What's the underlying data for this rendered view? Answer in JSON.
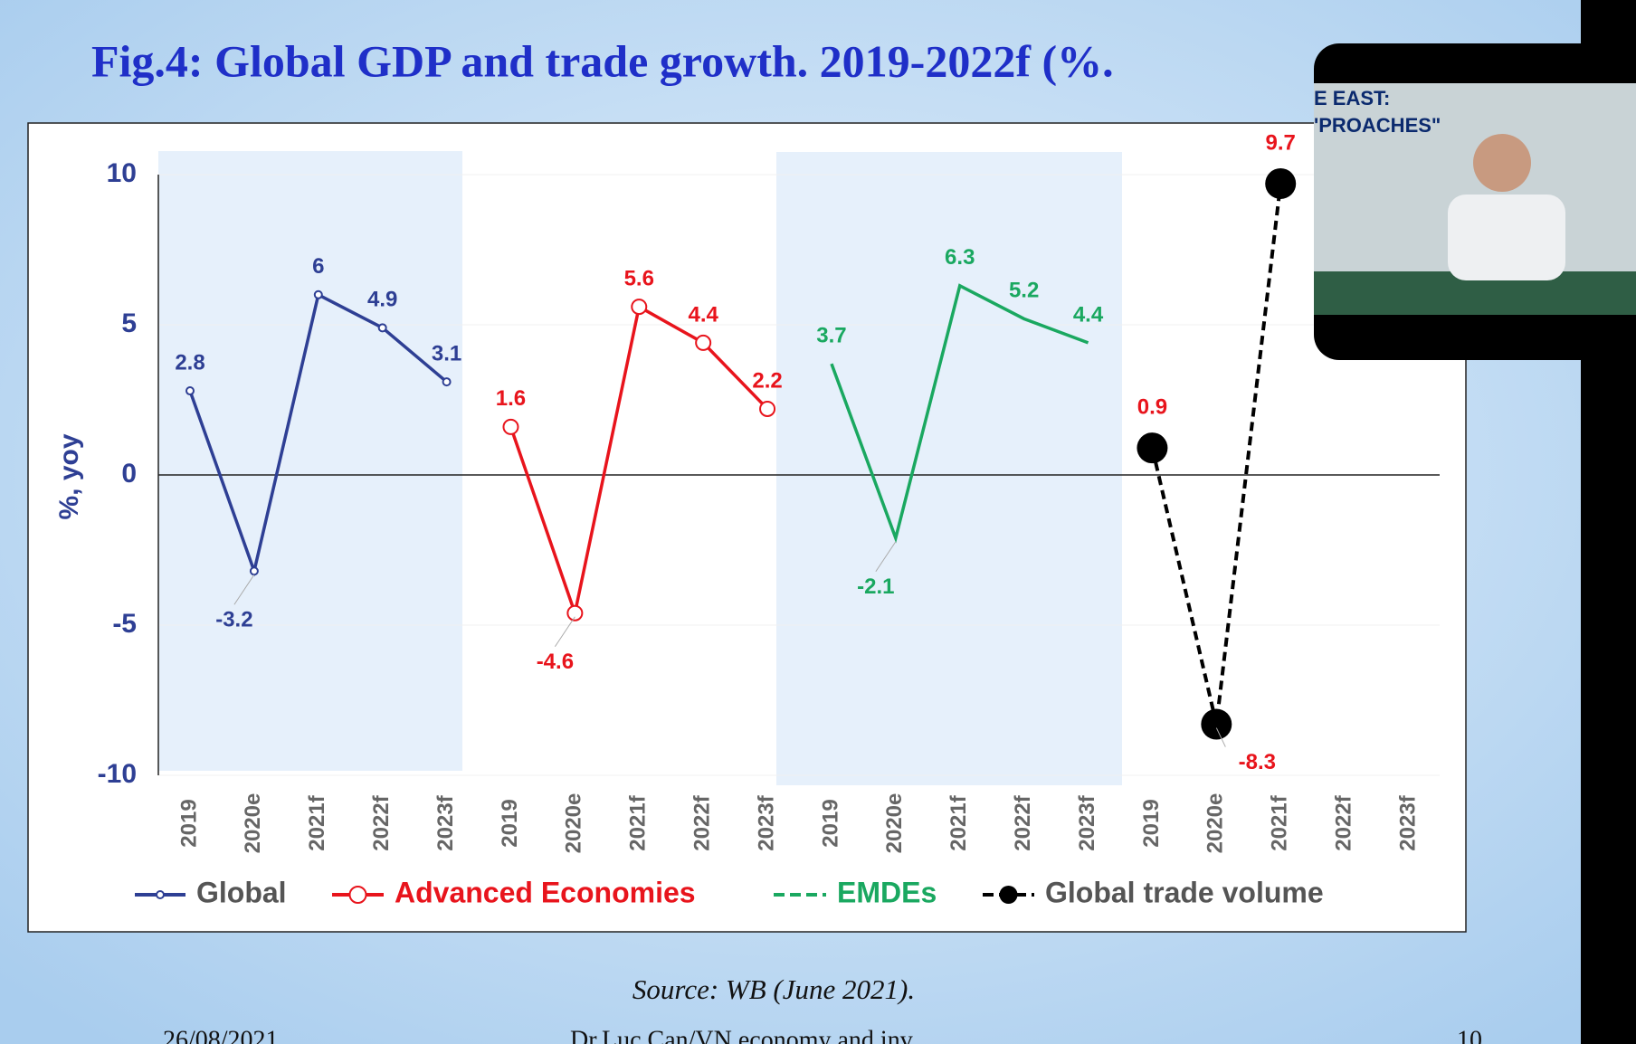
{
  "chart_data": {
    "type": "line",
    "title": "Fig.4: Global GDP and trade growth. 2019-2022f (%.",
    "ylabel": "%, yoy",
    "source": "Source: WB (June 2021).",
    "footer": {
      "date": "26/08/2021",
      "author": "Dr.Luc Can/VN economy and inv",
      "page": "10"
    },
    "overlay_texts": [
      "E EAST:",
      "'PROACHES\""
    ],
    "categories": [
      "2019",
      "2020e",
      "2021f",
      "2022f",
      "2023f",
      "2019",
      "2020e",
      "2021f",
      "2022f",
      "2023f",
      "2019",
      "2020e",
      "2021f",
      "2022f",
      "2023f",
      "2019",
      "2020e",
      "2021f",
      "2022f",
      "2023f"
    ],
    "series": [
      {
        "name": "Global",
        "color": "#2e3f94",
        "legend_text_color": "#555555",
        "marker": "small",
        "dash": false,
        "values": [
          2.8,
          -3.2,
          6,
          4.9,
          3.1,
          null,
          null,
          null,
          null,
          null,
          null,
          null,
          null,
          null,
          null,
          null,
          null,
          null,
          null,
          null
        ]
      },
      {
        "name": "Advanced Economies",
        "color": "#e8141c",
        "legend_text_color": "#e8141c",
        "marker": "open",
        "dash": false,
        "values": [
          null,
          null,
          null,
          null,
          null,
          1.6,
          -4.6,
          5.6,
          4.4,
          2.2,
          null,
          null,
          null,
          null,
          null,
          null,
          null,
          null,
          null,
          null
        ]
      },
      {
        "name": "EMDEs",
        "color": "#1aa860",
        "legend_text_color": "#1aa860",
        "marker": "none",
        "dash": false,
        "values": [
          null,
          null,
          null,
          null,
          null,
          null,
          null,
          null,
          null,
          null,
          3.7,
          -2.1,
          6.3,
          5.2,
          4.4,
          null,
          null,
          null,
          null,
          null
        ]
      },
      {
        "name": "Global trade volume",
        "color": "#000000",
        "legend_text_color": "#555555",
        "marker": "big",
        "dash": true,
        "values": [
          null,
          null,
          null,
          null,
          null,
          null,
          null,
          null,
          null,
          null,
          null,
          null,
          null,
          null,
          null,
          0.9,
          -8.3,
          9.7,
          null,
          null
        ]
      }
    ],
    "ylim": [
      -10,
      10
    ],
    "yticks": [
      -10,
      -5,
      0,
      5,
      10
    ],
    "grid": true
  }
}
